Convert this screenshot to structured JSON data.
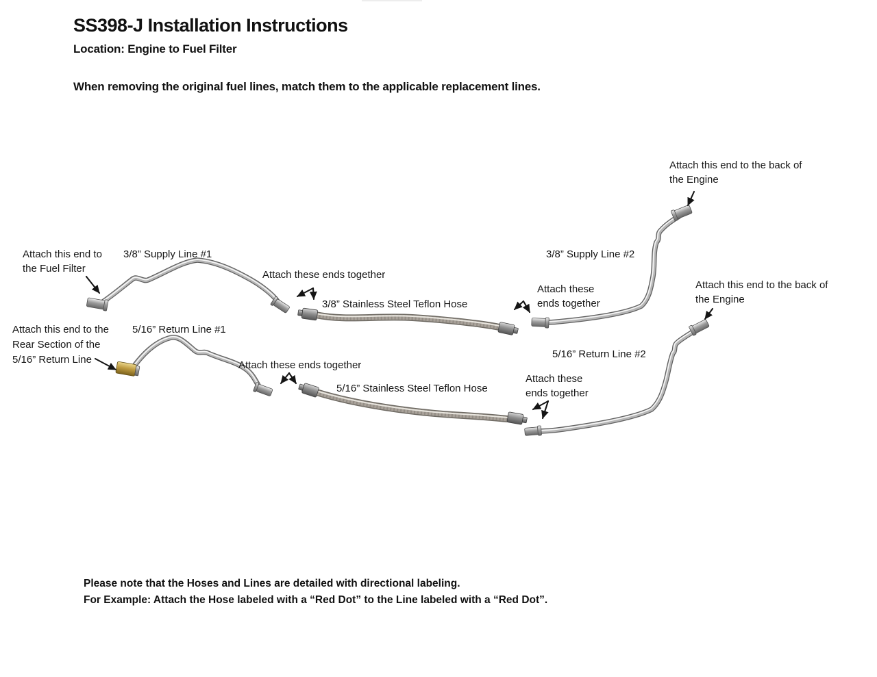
{
  "header": {
    "title": "SS398-J Installation Instructions",
    "location": "Location: Engine to Fuel Filter",
    "intro": "When removing the original fuel lines, match them to the applicable replacement lines."
  },
  "diagram": {
    "supply_group": {
      "attach_fuel_filter": [
        "Attach this end to",
        "the Fuel Filter"
      ],
      "supply_line_1_label": "3/8” Supply Line #1",
      "attach_ends_together_1": "Attach these ends together",
      "hose_38_label": "3/8” Stainless Steel Teflon Hose",
      "attach_ends_together_2": [
        "Attach these",
        "ends together"
      ],
      "supply_line_2_label": "3/8” Supply Line #2",
      "attach_engine_top": [
        "Attach this end to the back of",
        "the Engine"
      ]
    },
    "return_group": {
      "attach_rear_section": [
        "Attach this end to the",
        "Rear Section of the",
        "5/16” Return Line"
      ],
      "return_line_1_label": "5/16” Return Line #1",
      "attach_ends_together_1": "Attach these ends together",
      "hose_516_label": "5/16” Stainless Steel Teflon Hose",
      "attach_ends_together_2": [
        "Attach these",
        "ends together"
      ],
      "return_line_2_label": "5/16” Return Line #2",
      "attach_engine_right": [
        "Attach this end to the back of",
        "the Engine"
      ]
    }
  },
  "footer": {
    "note": [
      "Please note that the Hoses and Lines are detailed with directional labeling.",
      "For Example: Attach the Hose labeled with a “Red Dot” to the Line labeled with a “Red Dot”."
    ]
  },
  "colors": {
    "text": "#161616",
    "steel_tube": "#b6b6b6",
    "braided_hose": "#a9a29a",
    "brass_fitting": "#bf9c42",
    "arrow": "#151515"
  }
}
